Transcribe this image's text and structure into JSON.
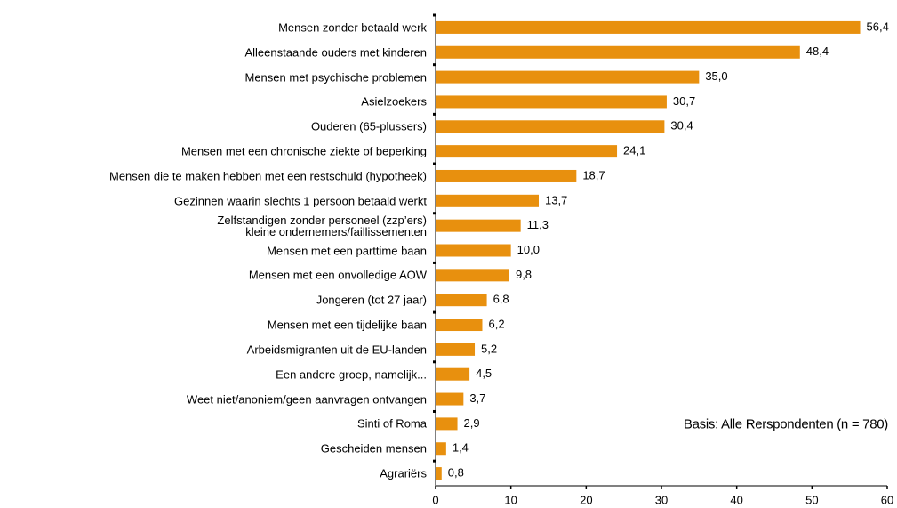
{
  "chart_data": {
    "type": "bar",
    "orientation": "horizontal",
    "annotation": "Basis: Alle Rerspondenten (n = 780)",
    "categories": [
      "Mensen zonder betaald werk",
      "Alleenstaande ouders met kinderen",
      "Mensen met psychische problemen",
      "Asielzoekers",
      "Ouderen (65-plussers)",
      "Mensen met een chronische ziekte of beperking",
      "Mensen die te maken hebben met een restschuld (hypotheek)",
      "Gezinnen waarin slechts 1 persoon betaald werkt",
      "Zelfstandigen zonder personeel (zzp’ers)\nkleine ondernemers/faillissementen",
      "Mensen met een parttime baan",
      "Mensen met een onvolledige AOW",
      "Jongeren (tot 27 jaar)",
      "Mensen met een tijdelijke baan",
      "Arbeidsmigranten uit de EU-landen",
      "Een andere groep, namelijk...",
      "Weet niet/anoniem/geen aanvragen ontvangen",
      "Sinti of Roma",
      "Gescheiden mensen",
      "Agrariërs"
    ],
    "values": [
      56.4,
      48.4,
      35.0,
      30.7,
      30.4,
      24.1,
      18.7,
      13.7,
      11.3,
      10.0,
      9.8,
      6.8,
      6.2,
      5.2,
      4.5,
      3.7,
      2.9,
      1.4,
      0.8
    ],
    "value_labels": [
      "56,4",
      "48,4",
      "35,0",
      "30,7",
      "30,4",
      "24,1",
      "18,7",
      "13,7",
      "11,3",
      "10,0",
      "9,8",
      "6,8",
      "6,2",
      "5,2",
      "4,5",
      "3,7",
      "2,9",
      "1,4",
      "0,8"
    ],
    "color": "#e8900e",
    "xlim": [
      0,
      60
    ],
    "xticks": [
      0,
      10,
      20,
      30,
      40,
      50,
      60
    ]
  }
}
